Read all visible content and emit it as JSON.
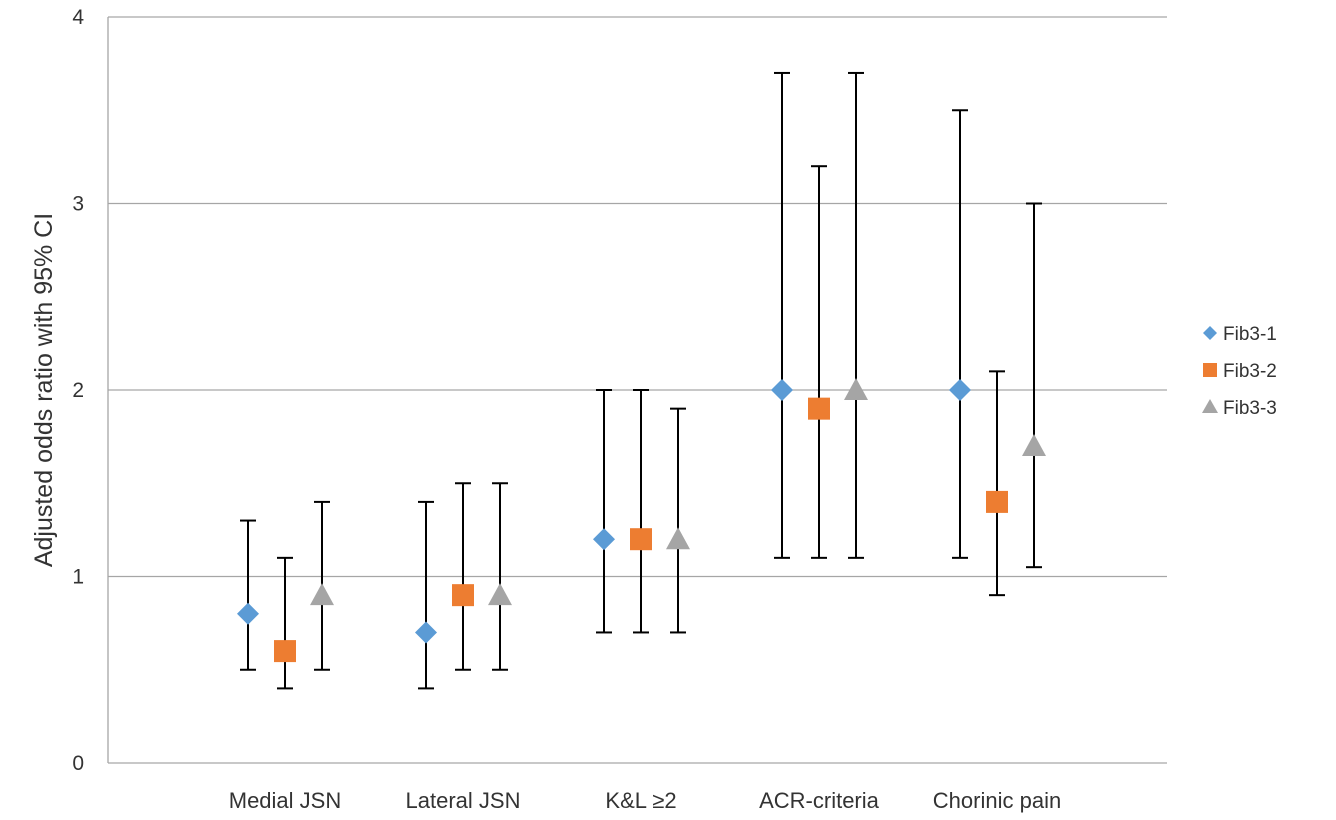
{
  "chart_data": {
    "type": "scatter",
    "title": "",
    "xlabel": "",
    "ylabel": "Adjusted odds ratio with 95% CI",
    "ylim": [
      0,
      4
    ],
    "yticks": [
      "0",
      "1",
      "2",
      "3",
      "4"
    ],
    "grid": true,
    "legend_position": "right",
    "categories": [
      "Medial JSN",
      "Lateral JSN",
      "K&L ≥2",
      "ACR-criteria",
      "Chorinic pain"
    ],
    "series": [
      {
        "name": "Fib3-1",
        "marker": "diamond",
        "color": "#5b9bd5",
        "values": [
          0.8,
          0.7,
          1.2,
          2.0,
          2.0
        ],
        "ci_low": [
          0.5,
          0.4,
          0.7,
          1.1,
          1.1
        ],
        "ci_high": [
          1.3,
          1.4,
          2.0,
          3.7,
          3.5
        ]
      },
      {
        "name": "Fib3-2",
        "marker": "square",
        "color": "#ed7d31",
        "values": [
          0.6,
          0.9,
          1.2,
          1.9,
          1.4
        ],
        "ci_low": [
          0.4,
          0.5,
          0.7,
          1.1,
          0.9
        ],
        "ci_high": [
          1.1,
          1.5,
          2.0,
          3.2,
          2.1
        ]
      },
      {
        "name": "Fib3-3",
        "marker": "triangle",
        "color": "#a5a5a5",
        "values": [
          0.9,
          0.9,
          1.2,
          2.0,
          1.7
        ],
        "ci_low": [
          0.5,
          0.5,
          0.7,
          1.1,
          1.05
        ],
        "ci_high": [
          1.4,
          1.5,
          1.9,
          3.7,
          3.0
        ]
      }
    ]
  }
}
